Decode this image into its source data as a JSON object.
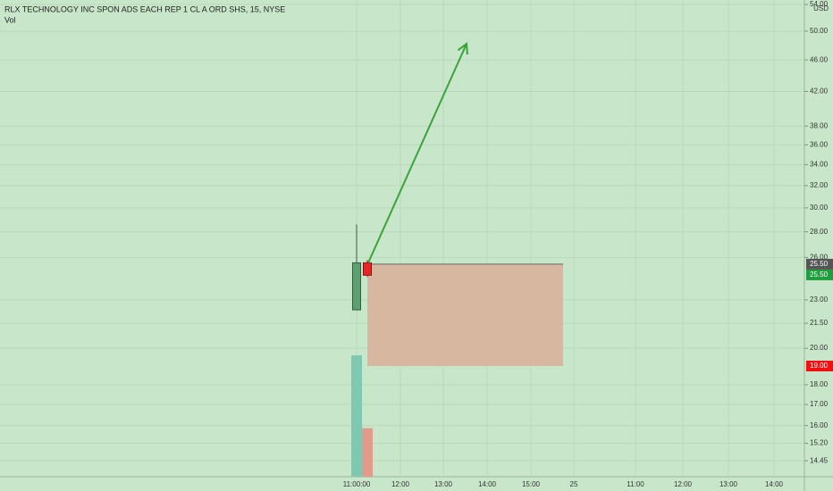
{
  "chart_data": {
    "type": "candlestick",
    "title": "RLX TECHNOLOGY INC SPON ADS EACH REP 1 CL A ORD SHS, 15, NYSE",
    "subtitle": "Vol",
    "y_axis_label": "USD",
    "log_scale": true,
    "grid": true,
    "background": "#c8e6c9",
    "ylim": [
      13.8,
      54.7
    ],
    "yticks": [
      {
        "value": 14.45,
        "label": "14.45"
      },
      {
        "value": 15.2,
        "label": "15.20"
      },
      {
        "value": 16,
        "label": "16.00"
      },
      {
        "value": 17,
        "label": "17.00"
      },
      {
        "value": 18,
        "label": "18.00"
      },
      {
        "value": 20,
        "label": "20.00"
      },
      {
        "value": 21.5,
        "label": "21.50"
      },
      {
        "value": 23,
        "label": "23.00"
      },
      {
        "value": 26,
        "label": "26.00"
      },
      {
        "value": 28,
        "label": "28.00"
      },
      {
        "value": 30,
        "label": "30.00"
      },
      {
        "value": 32,
        "label": "32.00"
      },
      {
        "value": 34,
        "label": "34.00"
      },
      {
        "value": 36,
        "label": "36.00"
      },
      {
        "value": 38,
        "label": "38.00"
      },
      {
        "value": 42,
        "label": "42.00"
      },
      {
        "value": 46,
        "label": "46.00"
      },
      {
        "value": 50,
        "label": "50.00"
      },
      {
        "value": 54,
        "label": "54.00"
      }
    ],
    "xticks": [
      "11:00:00",
      "12:00",
      "13:00",
      "14:00",
      "15:00",
      "25",
      "11:00",
      "12:00",
      "13:00",
      "14:00"
    ],
    "candles": {
      "open": [
        22.35,
        25.6
      ],
      "high": [
        28.6,
        25.8
      ],
      "low": [
        22.35,
        24.6
      ],
      "close": [
        25.6,
        24.7
      ],
      "up_color": "#5e9f71",
      "down_color": "#e8262a"
    },
    "volume": {
      "values": [
        10,
        4
      ],
      "vlim": [
        0,
        20
      ],
      "colors": [
        "#80c8b2",
        "#e09b8b"
      ]
    },
    "price_labels": [
      {
        "value": 25.5,
        "label": "25.50",
        "color": "#555555"
      },
      {
        "value": 25.5,
        "label": "25.50",
        "color": "#1f9e3f"
      },
      {
        "value": 19,
        "label": "19.00",
        "color": "#f01010"
      }
    ],
    "position": {
      "top": 25.5,
      "bottom": 19,
      "color": "#d8b7a1"
    },
    "arrow": {
      "from": 25.6,
      "to": 48.2,
      "color": "#3aa33a"
    }
  }
}
